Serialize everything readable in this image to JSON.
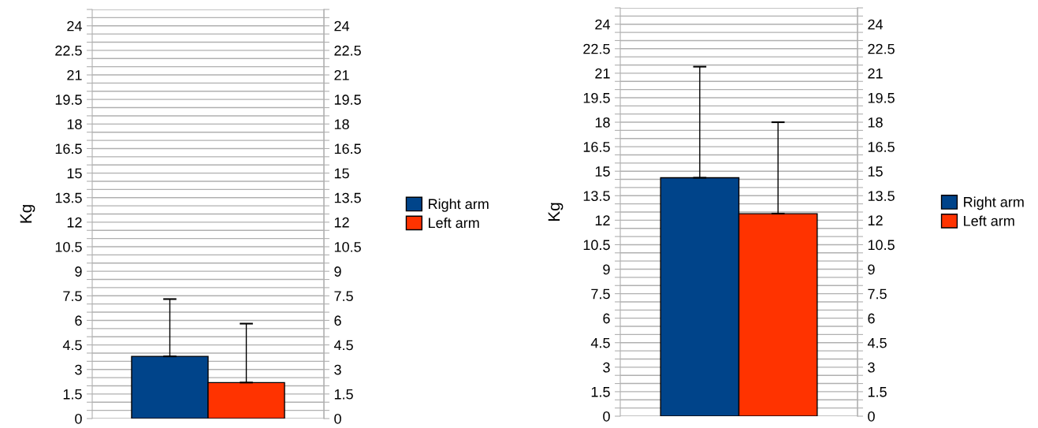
{
  "chart_data": [
    {
      "type": "bar",
      "ylabel": "Kg",
      "categories": [
        null
      ],
      "legend": "right",
      "series": [
        {
          "name": "Right arm",
          "color": "#00448a",
          "values": [
            3.8
          ],
          "errors": [
            [
              3.8,
              7.3
            ]
          ]
        },
        {
          "name": "Left arm",
          "color": "#ff3300",
          "values": [
            2.2
          ],
          "errors": [
            [
              2.2,
              5.8
            ]
          ]
        }
      ],
      "ylim": [
        0,
        25
      ],
      "y2lim": [
        0,
        25
      ],
      "grid": "y",
      "yticks": [
        0,
        {
          "value": 0.5,
          "label": null
        },
        {
          "value": 1,
          "label": null
        },
        1.5,
        {
          "value": 2,
          "label": null
        },
        {
          "value": 2.5,
          "label": null
        },
        3,
        {
          "value": 3.5,
          "label": null
        },
        {
          "value": 4,
          "label": null
        },
        4.5,
        {
          "value": 5,
          "label": null
        },
        {
          "value": 5.5,
          "label": null
        },
        6,
        {
          "value": 6.5,
          "label": null
        },
        {
          "value": 7,
          "label": null
        },
        7.5,
        {
          "value": 8,
          "label": null
        },
        {
          "value": 8.5,
          "label": null
        },
        9,
        {
          "value": 9.5,
          "label": null
        },
        {
          "value": 10,
          "label": null
        },
        10.5,
        {
          "value": 11,
          "label": null
        },
        {
          "value": 11.5,
          "label": null
        },
        12,
        {
          "value": 12.5,
          "label": null
        },
        {
          "value": 13,
          "label": null
        },
        13.5,
        {
          "value": 14,
          "label": null
        },
        {
          "value": 14.5,
          "label": null
        },
        15,
        {
          "value": 15.5,
          "label": null
        },
        {
          "value": 16,
          "label": null
        },
        16.5,
        {
          "value": 17,
          "label": null
        },
        {
          "value": 17.5,
          "label": null
        },
        18,
        {
          "value": 18.5,
          "label": null
        },
        {
          "value": 19,
          "label": null
        },
        19.5,
        {
          "value": 20,
          "label": null
        },
        {
          "value": 20.5,
          "label": null
        },
        21,
        {
          "value": 21.5,
          "label": null
        },
        {
          "value": 22,
          "label": null
        },
        22.5,
        {
          "value": 23,
          "label": null
        },
        {
          "value": 23.5,
          "label": null
        },
        24,
        {
          "value": 24.5,
          "label": null
        },
        {
          "value": 25,
          "label": null
        }
      ],
      "y2ticks": [
        0,
        {
          "value": 0.5,
          "label": null
        },
        {
          "value": 1,
          "label": null
        },
        1.5,
        {
          "value": 2,
          "label": null
        },
        {
          "value": 2.5,
          "label": null
        },
        3,
        {
          "value": 3.5,
          "label": null
        },
        {
          "value": 4,
          "label": null
        },
        4.5,
        {
          "value": 5,
          "label": null
        },
        {
          "value": 5.5,
          "label": null
        },
        6,
        {
          "value": 6.5,
          "label": null
        },
        {
          "value": 7,
          "label": null
        },
        7.5,
        {
          "value": 8,
          "label": null
        },
        {
          "value": 8.5,
          "label": null
        },
        9,
        {
          "value": 9.5,
          "label": null
        },
        {
          "value": 10,
          "label": null
        },
        10.5,
        {
          "value": 11,
          "label": null
        },
        {
          "value": 11.5,
          "label": null
        },
        12,
        {
          "value": 12.5,
          "label": null
        },
        {
          "value": 13,
          "label": null
        },
        13.5,
        {
          "value": 14,
          "label": null
        },
        {
          "value": 14.5,
          "label": null
        },
        15,
        {
          "value": 15.5,
          "label": null
        },
        {
          "value": 16,
          "label": null
        },
        16.5,
        {
          "value": 17,
          "label": null
        },
        {
          "value": 17.5,
          "label": null
        },
        18,
        {
          "value": 18.5,
          "label": null
        },
        {
          "value": 19,
          "label": null
        },
        19.5,
        {
          "value": 20,
          "label": null
        },
        {
          "value": 20.5,
          "label": null
        },
        21,
        {
          "value": 21.5,
          "label": null
        },
        {
          "value": 22,
          "label": null
        },
        22.5,
        {
          "value": 23,
          "label": null
        },
        {
          "value": 23.5,
          "label": null
        },
        24,
        {
          "value": 24.5,
          "label": null
        },
        {
          "value": 25,
          "label": null
        }
      ]
    },
    {
      "type": "bar",
      "ylabel": "Kg",
      "categories": [
        null
      ],
      "legend": "right",
      "series": [
        {
          "name": "Right arm",
          "color": "#00448a",
          "values": [
            14.6
          ],
          "errors": [
            [
              14.6,
              21.4
            ]
          ]
        },
        {
          "name": "Left arm",
          "color": "#ff3300",
          "values": [
            12.4
          ],
          "errors": [
            [
              12.4,
              18.0
            ]
          ]
        }
      ],
      "ylim": [
        0,
        25
      ],
      "y2lim": [
        0,
        25
      ],
      "grid": "y",
      "yticks": [
        0,
        {
          "value": 0.5,
          "label": null
        },
        {
          "value": 1,
          "label": null
        },
        1.5,
        {
          "value": 2,
          "label": null
        },
        {
          "value": 2.5,
          "label": null
        },
        3,
        {
          "value": 3.5,
          "label": null
        },
        {
          "value": 4,
          "label": null
        },
        4.5,
        {
          "value": 5,
          "label": null
        },
        {
          "value": 5.5,
          "label": null
        },
        6,
        {
          "value": 6.5,
          "label": null
        },
        {
          "value": 7,
          "label": null
        },
        7.5,
        {
          "value": 8,
          "label": null
        },
        {
          "value": 8.5,
          "label": null
        },
        9,
        {
          "value": 9.5,
          "label": null
        },
        {
          "value": 10,
          "label": null
        },
        10.5,
        {
          "value": 11,
          "label": null
        },
        {
          "value": 11.5,
          "label": null
        },
        12,
        {
          "value": 12.5,
          "label": null
        },
        {
          "value": 13,
          "label": null
        },
        13.5,
        {
          "value": 14,
          "label": null
        },
        {
          "value": 14.5,
          "label": null
        },
        15,
        {
          "value": 15.5,
          "label": null
        },
        {
          "value": 16,
          "label": null
        },
        16.5,
        {
          "value": 17,
          "label": null
        },
        {
          "value": 17.5,
          "label": null
        },
        18,
        {
          "value": 18.5,
          "label": null
        },
        {
          "value": 19,
          "label": null
        },
        19.5,
        {
          "value": 20,
          "label": null
        },
        {
          "value": 20.5,
          "label": null
        },
        21,
        {
          "value": 21.5,
          "label": null
        },
        {
          "value": 22,
          "label": null
        },
        22.5,
        {
          "value": 23,
          "label": null
        },
        {
          "value": 23.5,
          "label": null
        },
        24,
        {
          "value": 24.5,
          "label": null
        },
        {
          "value": 25,
          "label": null
        }
      ],
      "y2ticks": [
        0,
        {
          "value": 0.5,
          "label": null
        },
        {
          "value": 1,
          "label": null
        },
        1.5,
        {
          "value": 2,
          "label": null
        },
        {
          "value": 2.5,
          "label": null
        },
        3,
        {
          "value": 3.5,
          "label": null
        },
        {
          "value": 4,
          "label": null
        },
        4.5,
        {
          "value": 5,
          "label": null
        },
        {
          "value": 5.5,
          "label": null
        },
        6,
        {
          "value": 6.5,
          "label": null
        },
        {
          "value": 7,
          "label": null
        },
        7.5,
        {
          "value": 8,
          "label": null
        },
        {
          "value": 8.5,
          "label": null
        },
        9,
        {
          "value": 9.5,
          "label": null
        },
        {
          "value": 10,
          "label": null
        },
        10.5,
        {
          "value": 11,
          "label": null
        },
        {
          "value": 11.5,
          "label": null
        },
        12,
        {
          "value": 12.5,
          "label": null
        },
        {
          "value": 13,
          "label": null
        },
        13.5,
        {
          "value": 14,
          "label": null
        },
        {
          "value": 14.5,
          "label": null
        },
        15,
        {
          "value": 15.5,
          "label": null
        },
        {
          "value": 16,
          "label": null
        },
        16.5,
        {
          "value": 17,
          "label": null
        },
        {
          "value": 17.5,
          "label": null
        },
        18,
        {
          "value": 18.5,
          "label": null
        },
        {
          "value": 19,
          "label": null
        },
        19.5,
        {
          "value": 20,
          "label": null
        },
        {
          "value": 20.5,
          "label": null
        },
        21,
        {
          "value": 21.5,
          "label": null
        },
        {
          "value": 22,
          "label": null
        },
        22.5,
        {
          "value": 23,
          "label": null
        },
        {
          "value": 23.5,
          "label": null
        },
        24,
        {
          "value": 24.5,
          "label": null
        },
        {
          "value": 25,
          "label": null
        }
      ]
    }
  ]
}
